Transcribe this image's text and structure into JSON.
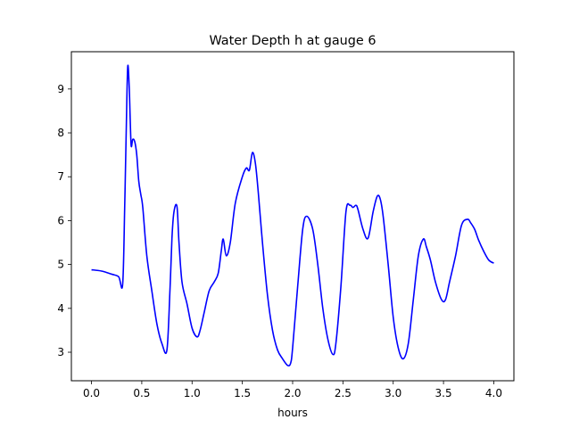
{
  "chart_data": {
    "type": "line",
    "title": "Water Depth h at gauge 6",
    "xlabel": "hours",
    "ylabel": "",
    "xlim": [
      -0.2,
      4.2
    ],
    "ylim": [
      2.35,
      9.85
    ],
    "xticks": [
      0.0,
      0.5,
      1.0,
      1.5,
      2.0,
      2.5,
      3.0,
      3.5,
      4.0
    ],
    "xtick_labels": [
      "0.0",
      "0.5",
      "1.0",
      "1.5",
      "2.0",
      "2.5",
      "3.0",
      "3.5",
      "4.0"
    ],
    "yticks": [
      3,
      4,
      5,
      6,
      7,
      8,
      9
    ],
    "ytick_labels": [
      "3",
      "4",
      "5",
      "6",
      "7",
      "8",
      "9"
    ],
    "grid": false,
    "series": [
      {
        "color": "#0000ff",
        "x": [
          0.0,
          0.1,
          0.2,
          0.27,
          0.31,
          0.33,
          0.345,
          0.36,
          0.375,
          0.385,
          0.395,
          0.41,
          0.43,
          0.45,
          0.47,
          0.49,
          0.51,
          0.55,
          0.6,
          0.65,
          0.7,
          0.75,
          0.78,
          0.8,
          0.82,
          0.85,
          0.87,
          0.9,
          0.95,
          1.0,
          1.05,
          1.08,
          1.12,
          1.17,
          1.22,
          1.26,
          1.29,
          1.31,
          1.34,
          1.38,
          1.43,
          1.5,
          1.54,
          1.57,
          1.6,
          1.63,
          1.66,
          1.7,
          1.75,
          1.8,
          1.85,
          1.9,
          1.95,
          1.98,
          2.0,
          2.05,
          2.1,
          2.14,
          2.2,
          2.25,
          2.3,
          2.35,
          2.4,
          2.43,
          2.48,
          2.53,
          2.57,
          2.6,
          2.63,
          2.65,
          2.7,
          2.75,
          2.8,
          2.84,
          2.87,
          2.9,
          2.95,
          3.0,
          3.05,
          3.1,
          3.15,
          3.2,
          3.25,
          3.3,
          3.33,
          3.37,
          3.42,
          3.48,
          3.52,
          3.56,
          3.62,
          3.68,
          3.74,
          3.77,
          3.81,
          3.85,
          3.9,
          3.95,
          4.0
        ],
        "y": [
          4.88,
          4.85,
          4.78,
          4.72,
          4.55,
          6.3,
          8.0,
          9.5,
          9.05,
          8.3,
          7.7,
          7.85,
          7.8,
          7.5,
          6.9,
          6.6,
          6.3,
          5.2,
          4.4,
          3.65,
          3.2,
          3.05,
          4.4,
          5.6,
          6.2,
          6.32,
          5.5,
          4.6,
          4.1,
          3.55,
          3.35,
          3.5,
          3.9,
          4.4,
          4.6,
          4.8,
          5.3,
          5.58,
          5.2,
          5.5,
          6.4,
          7.0,
          7.2,
          7.15,
          7.55,
          7.3,
          6.6,
          5.5,
          4.3,
          3.5,
          3.05,
          2.85,
          2.7,
          2.75,
          3.1,
          4.5,
          5.8,
          6.1,
          5.8,
          5.0,
          4.0,
          3.3,
          2.95,
          3.2,
          4.5,
          6.2,
          6.35,
          6.3,
          6.35,
          6.25,
          5.8,
          5.6,
          6.2,
          6.55,
          6.5,
          6.1,
          5.0,
          3.8,
          3.1,
          2.85,
          3.2,
          4.2,
          5.2,
          5.58,
          5.4,
          5.1,
          4.6,
          4.2,
          4.2,
          4.6,
          5.2,
          5.9,
          6.03,
          5.95,
          5.8,
          5.55,
          5.3,
          5.1,
          5.03
        ]
      }
    ]
  }
}
